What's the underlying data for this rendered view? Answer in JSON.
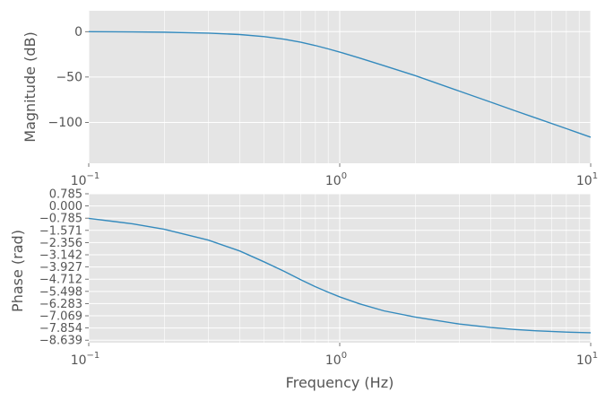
{
  "chart_data": [
    {
      "type": "line",
      "xlabel": "",
      "ylabel": "Magnitude (dB)",
      "xscale": "log",
      "xlim": [
        0.1,
        10
      ],
      "ylim": [
        -145,
        23
      ],
      "x_ticks": [
        {
          "base": "10",
          "exp": "−1"
        },
        {
          "base": "10",
          "exp": "0"
        },
        {
          "base": "10",
          "exp": "1"
        }
      ],
      "y_ticks": [
        {
          "value": 0,
          "label": "0"
        },
        {
          "value": -50,
          "label": "−50"
        },
        {
          "value": -100,
          "label": "−100"
        }
      ],
      "grid": true,
      "line_color": "#348abd",
      "series": [
        {
          "x": [
            0.1,
            0.15,
            0.2,
            0.3,
            0.4,
            0.5,
            0.6,
            0.7,
            0.8,
            0.9,
            1.0,
            1.2,
            1.5,
            2,
            3,
            4,
            5,
            6,
            8,
            10
          ],
          "values": [
            -0.05,
            -0.3,
            -0.6,
            -1.6,
            -3.2,
            -5.5,
            -8.3,
            -11.6,
            -15.3,
            -19.0,
            -22.5,
            -29.1,
            -37.5,
            -48.5,
            -65.6,
            -77.7,
            -87.2,
            -94.8,
            -106.8,
            -116.3
          ]
        }
      ]
    },
    {
      "type": "line",
      "xlabel": "Frequency (Hz)",
      "ylabel": "Phase (rad)",
      "xscale": "log",
      "xlim": [
        0.1,
        10
      ],
      "ylim": [
        -8.8,
        0.785
      ],
      "x_ticks": [
        {
          "base": "10",
          "exp": "−1"
        },
        {
          "base": "10",
          "exp": "0"
        },
        {
          "base": "10",
          "exp": "1"
        }
      ],
      "y_ticks": [
        {
          "value": 0.785,
          "label": "0.785"
        },
        {
          "value": 0.0,
          "label": "0.000"
        },
        {
          "value": -0.785,
          "label": "−0.785"
        },
        {
          "value": -1.571,
          "label": "−1.571"
        },
        {
          "value": -2.356,
          "label": "−2.356"
        },
        {
          "value": -3.142,
          "label": "−3.142"
        },
        {
          "value": -3.927,
          "label": "−3.927"
        },
        {
          "value": -4.712,
          "label": "−4.712"
        },
        {
          "value": -5.498,
          "label": "−5.498"
        },
        {
          "value": -6.283,
          "label": "−6.283"
        },
        {
          "value": -7.069,
          "label": "−7.069"
        },
        {
          "value": -7.854,
          "label": "−7.854"
        },
        {
          "value": -8.639,
          "label": "−8.639"
        }
      ],
      "grid": true,
      "line_color": "#348abd",
      "series": [
        {
          "x": [
            0.1,
            0.15,
            0.2,
            0.3,
            0.4,
            0.5,
            0.6,
            0.7,
            0.8,
            0.9,
            1.0,
            1.2,
            1.5,
            2,
            3,
            4,
            5,
            6,
            8,
            10
          ],
          "values": [
            -0.8,
            -1.15,
            -1.5,
            -2.2,
            -2.9,
            -3.6,
            -4.2,
            -4.75,
            -5.2,
            -5.55,
            -5.85,
            -6.3,
            -6.75,
            -7.15,
            -7.6,
            -7.82,
            -7.95,
            -8.03,
            -8.12,
            -8.16
          ]
        }
      ]
    }
  ]
}
